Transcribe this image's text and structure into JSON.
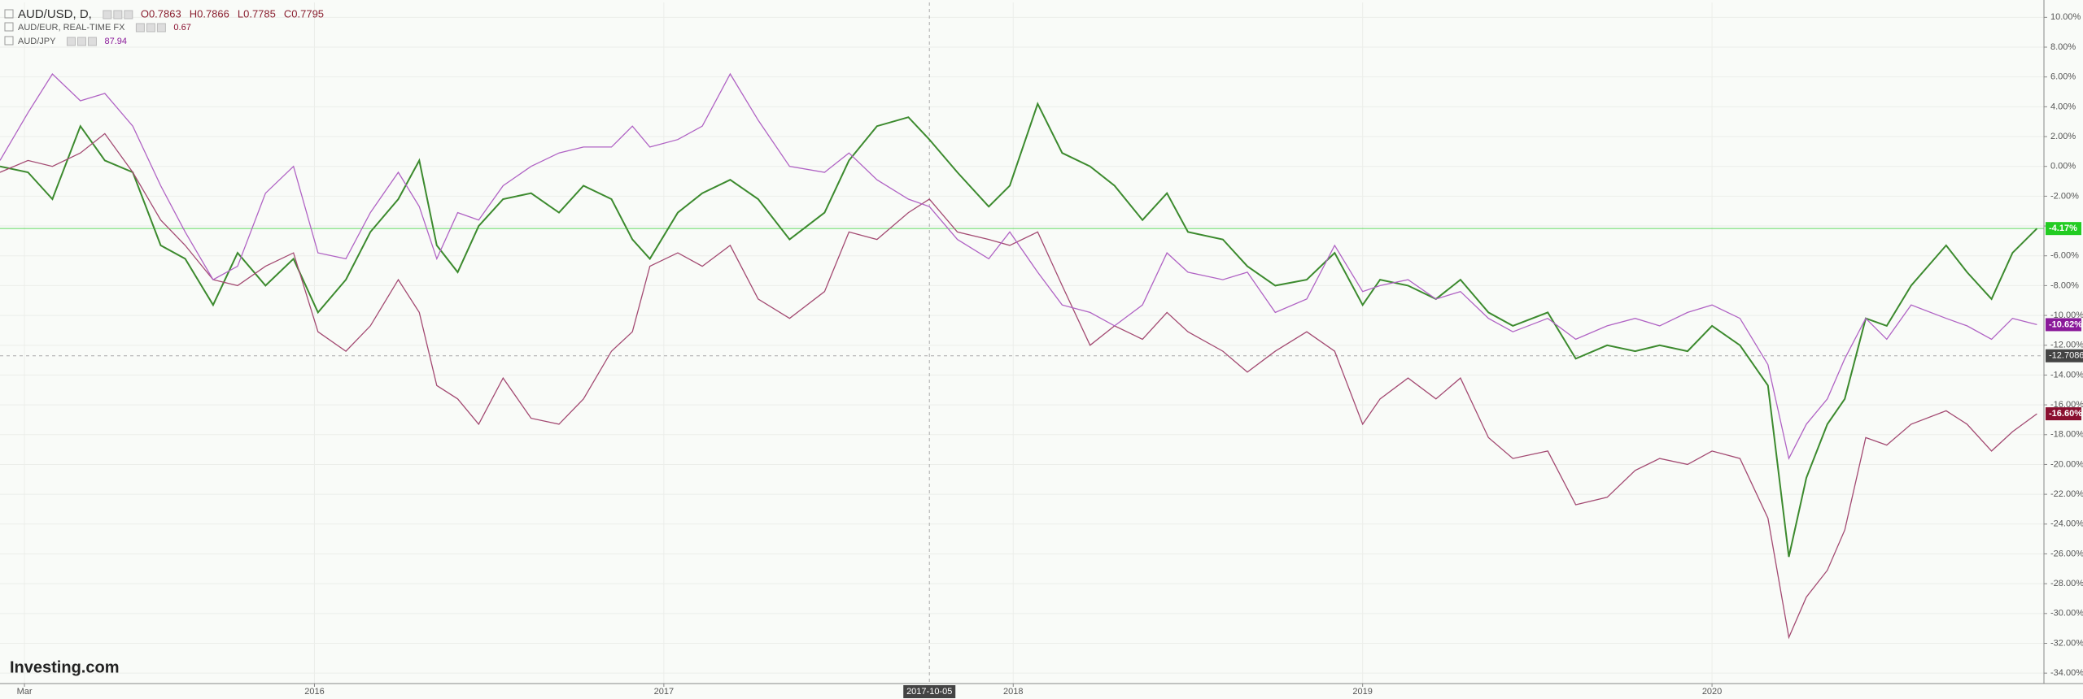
{
  "chart_data": {
    "type": "line",
    "watermark": "Investing.com",
    "x": [
      2015.1,
      2015.18,
      2015.25,
      2015.33,
      2015.4,
      2015.48,
      2015.56,
      2015.63,
      2015.71,
      2015.78,
      2015.86,
      2015.94,
      2016.01,
      2016.09,
      2016.16,
      2016.24,
      2016.3,
      2016.35,
      2016.41,
      2016.47,
      2016.54,
      2016.62,
      2016.7,
      2016.77,
      2016.85,
      2016.91,
      2016.96,
      2017.04,
      2017.11,
      2017.19,
      2017.27,
      2017.36,
      2017.46,
      2017.53,
      2017.61,
      2017.7,
      2017.76,
      2017.84,
      2017.93,
      2017.99,
      2018.07,
      2018.14,
      2018.22,
      2018.29,
      2018.37,
      2018.44,
      2018.5,
      2018.6,
      2018.67,
      2018.75,
      2018.84,
      2018.92,
      2019.0,
      2019.05,
      2019.13,
      2019.21,
      2019.28,
      2019.36,
      2019.43,
      2019.53,
      2019.61,
      2019.7,
      2019.78,
      2019.85,
      2019.93,
      2020.0,
      2020.08,
      2020.16,
      2020.22,
      2020.27,
      2020.33,
      2020.38,
      2020.44,
      2020.5,
      2020.57,
      2020.67,
      2020.73,
      2020.8,
      2020.86,
      2020.93
    ],
    "series": [
      {
        "name": "AUD/USD, D,",
        "color": "#3c8a2e",
        "tag_color": "#22cc22",
        "ohlc": [
          "O0.7863",
          "H0.7866",
          "L0.7785",
          "C0.7795"
        ],
        "last_label": "-4.17%",
        "values": [
          0,
          -0.4,
          -2.2,
          2.7,
          0.4,
          -0.4,
          -5.3,
          -6.2,
          -9.3,
          -5.8,
          -8.0,
          -6.2,
          -9.8,
          -7.6,
          -4.4,
          -2.2,
          0.4,
          -5.3,
          -7.1,
          -4.0,
          -2.2,
          -1.8,
          -3.1,
          -1.3,
          -2.2,
          -4.9,
          -6.2,
          -3.1,
          -1.8,
          -0.9,
          -2.2,
          -4.9,
          -3.1,
          0.4,
          2.7,
          3.3,
          1.8,
          -0.4,
          -2.7,
          -1.3,
          4.2,
          0.9,
          0,
          -1.3,
          -3.6,
          -1.8,
          -4.4,
          -4.9,
          -6.7,
          -8.0,
          -7.6,
          -5.8,
          -9.3,
          -7.6,
          -8.0,
          -8.9,
          -7.6,
          -9.8,
          -10.7,
          -9.8,
          -12.9,
          -12.0,
          -12.4,
          -12.0,
          -12.4,
          -10.7,
          -12.0,
          -14.7,
          -26.2,
          -20.9,
          -17.3,
          -15.6,
          -10.2,
          -10.7,
          -8.0,
          -5.3,
          -7.1,
          -8.9,
          -5.8,
          -4.17
        ]
      },
      {
        "name": "AUD/EUR, REAL-TIME FX",
        "color": "#a34a72",
        "tag_color": "#8a1030",
        "quote": 0.67,
        "last_label": "-16.60%",
        "values": [
          -0.4,
          0.4,
          0,
          0.9,
          2.2,
          -0.4,
          -3.6,
          -5.3,
          -7.6,
          -8.0,
          -6.7,
          -5.8,
          -11.1,
          -12.4,
          -10.7,
          -7.6,
          -9.8,
          -14.7,
          -15.6,
          -17.3,
          -14.2,
          -16.9,
          -17.3,
          -15.6,
          -12.4,
          -11.1,
          -6.7,
          -5.8,
          -6.7,
          -5.3,
          -8.9,
          -10.2,
          -8.4,
          -4.4,
          -4.9,
          -3.1,
          -2.2,
          -4.4,
          -4.9,
          -5.3,
          -4.4,
          -8.0,
          -12.0,
          -10.7,
          -11.6,
          -9.8,
          -11.1,
          -12.4,
          -13.8,
          -12.4,
          -11.1,
          -12.4,
          -17.3,
          -15.6,
          -14.2,
          -15.6,
          -14.2,
          -18.2,
          -19.6,
          -19.1,
          -22.7,
          -22.2,
          -20.4,
          -19.6,
          -20.0,
          -19.1,
          -19.6,
          -23.6,
          -31.6,
          -28.9,
          -27.1,
          -24.4,
          -18.2,
          -18.7,
          -17.3,
          -16.4,
          -17.3,
          -19.1,
          -17.8,
          -16.6
        ]
      },
      {
        "name": "AUD/JPY",
        "color": "#b063c4",
        "tag_color": "#8a1a9a",
        "quote": 87.94,
        "last_label": "-10.62%",
        "values": [
          0.4,
          3.6,
          6.2,
          4.4,
          4.9,
          2.7,
          -1.3,
          -4.4,
          -7.6,
          -6.7,
          -1.8,
          0,
          -5.8,
          -6.2,
          -3.1,
          -0.4,
          -2.7,
          -6.2,
          -3.1,
          -3.6,
          -1.3,
          0,
          0.9,
          1.3,
          1.3,
          2.7,
          1.3,
          1.8,
          2.7,
          6.2,
          3.1,
          0,
          -0.4,
          0.9,
          -0.9,
          -2.2,
          -2.7,
          -4.9,
          -6.2,
          -4.4,
          -7.1,
          -9.3,
          -9.8,
          -10.7,
          -9.3,
          -5.8,
          -7.1,
          -7.6,
          -7.1,
          -9.8,
          -8.9,
          -5.3,
          -8.4,
          -8.0,
          -7.6,
          -8.9,
          -8.4,
          -10.2,
          -11.1,
          -10.2,
          -11.6,
          -10.7,
          -10.2,
          -10.7,
          -9.8,
          -9.3,
          -10.2,
          -13.3,
          -19.6,
          -17.3,
          -15.6,
          -12.9,
          -10.2,
          -11.6,
          -9.3,
          -10.2,
          -10.7,
          -11.6,
          -10.2,
          -10.62
        ]
      }
    ],
    "crosshair": {
      "x": {
        "value": 2017.76,
        "label": "2017-10-05"
      },
      "y": -12.7086
    },
    "xlim": [
      2015.1,
      2020.95
    ],
    "xticks": [
      {
        "value": 2015.17,
        "label": "Mar"
      },
      2016,
      2017,
      2018,
      2019,
      2020
    ],
    "ylim": [
      -34.7,
      11
    ],
    "yticks": [
      {
        "value": 10,
        "label": "10.00%"
      },
      {
        "value": 8,
        "label": "8.00%"
      },
      {
        "value": 6,
        "label": "6.00%"
      },
      {
        "value": 4,
        "label": "4.00%"
      },
      {
        "value": 2,
        "label": "2.00%"
      },
      {
        "value": 0,
        "label": "0.00%"
      },
      {
        "value": -2,
        "label": "-2.00%"
      },
      {
        "value": -4,
        "label": "-4.00%"
      },
      {
        "value": -6,
        "label": "-6.00%"
      },
      {
        "value": -8,
        "label": "-8.00%"
      },
      {
        "value": -10,
        "label": "-10.00%"
      },
      {
        "value": -12,
        "label": "-12.00%"
      },
      {
        "value": -14,
        "label": "-14.00%"
      },
      {
        "value": -16,
        "label": "-16.00%"
      },
      {
        "value": -18,
        "label": "-18.00%"
      },
      {
        "value": -20,
        "label": "-20.00%"
      },
      {
        "value": -22,
        "label": "-22.00%"
      },
      {
        "value": -24,
        "label": "-24.00%"
      },
      {
        "value": -26,
        "label": "-26.00%"
      },
      {
        "value": -28,
        "label": "-28.00%"
      },
      {
        "value": -30,
        "label": "-30.00%"
      },
      {
        "value": -32,
        "label": "-32.00%"
      },
      {
        "value": -34,
        "label": "-34.00%"
      }
    ],
    "grid": true
  }
}
